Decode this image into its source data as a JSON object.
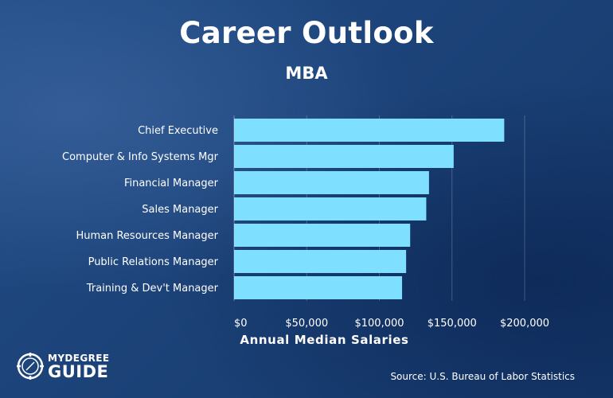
{
  "header": {
    "title": "Career Outlook",
    "subtitle": "MBA"
  },
  "chart_data": {
    "type": "bar",
    "orientation": "horizontal",
    "categories": [
      "Chief Executive",
      "Computer & Info Systems Mgr",
      "Financial Manager",
      "Sales Manager",
      "Human Resources Manager",
      "Public Relations Manager",
      "Training & Dev't Manager"
    ],
    "values": [
      185950,
      151150,
      134180,
      132290,
      121220,
      118430,
      115640
    ],
    "xlabel": "Annual Median Salaries",
    "ylabel": "",
    "xlim": [
      0,
      200000
    ],
    "x_ticks": [
      "$0",
      "$50,000",
      "$100,000",
      "$150,000",
      "$200,000"
    ],
    "x_tick_values": [
      0,
      50000,
      100000,
      150000,
      200000
    ],
    "bar_color": "#7fdfff",
    "grid": "vertical"
  },
  "footer": {
    "source": "Source: U.S. Bureau of Labor Statistics",
    "logo_top": "MYDEGREE",
    "logo_bottom": "GUIDE"
  }
}
